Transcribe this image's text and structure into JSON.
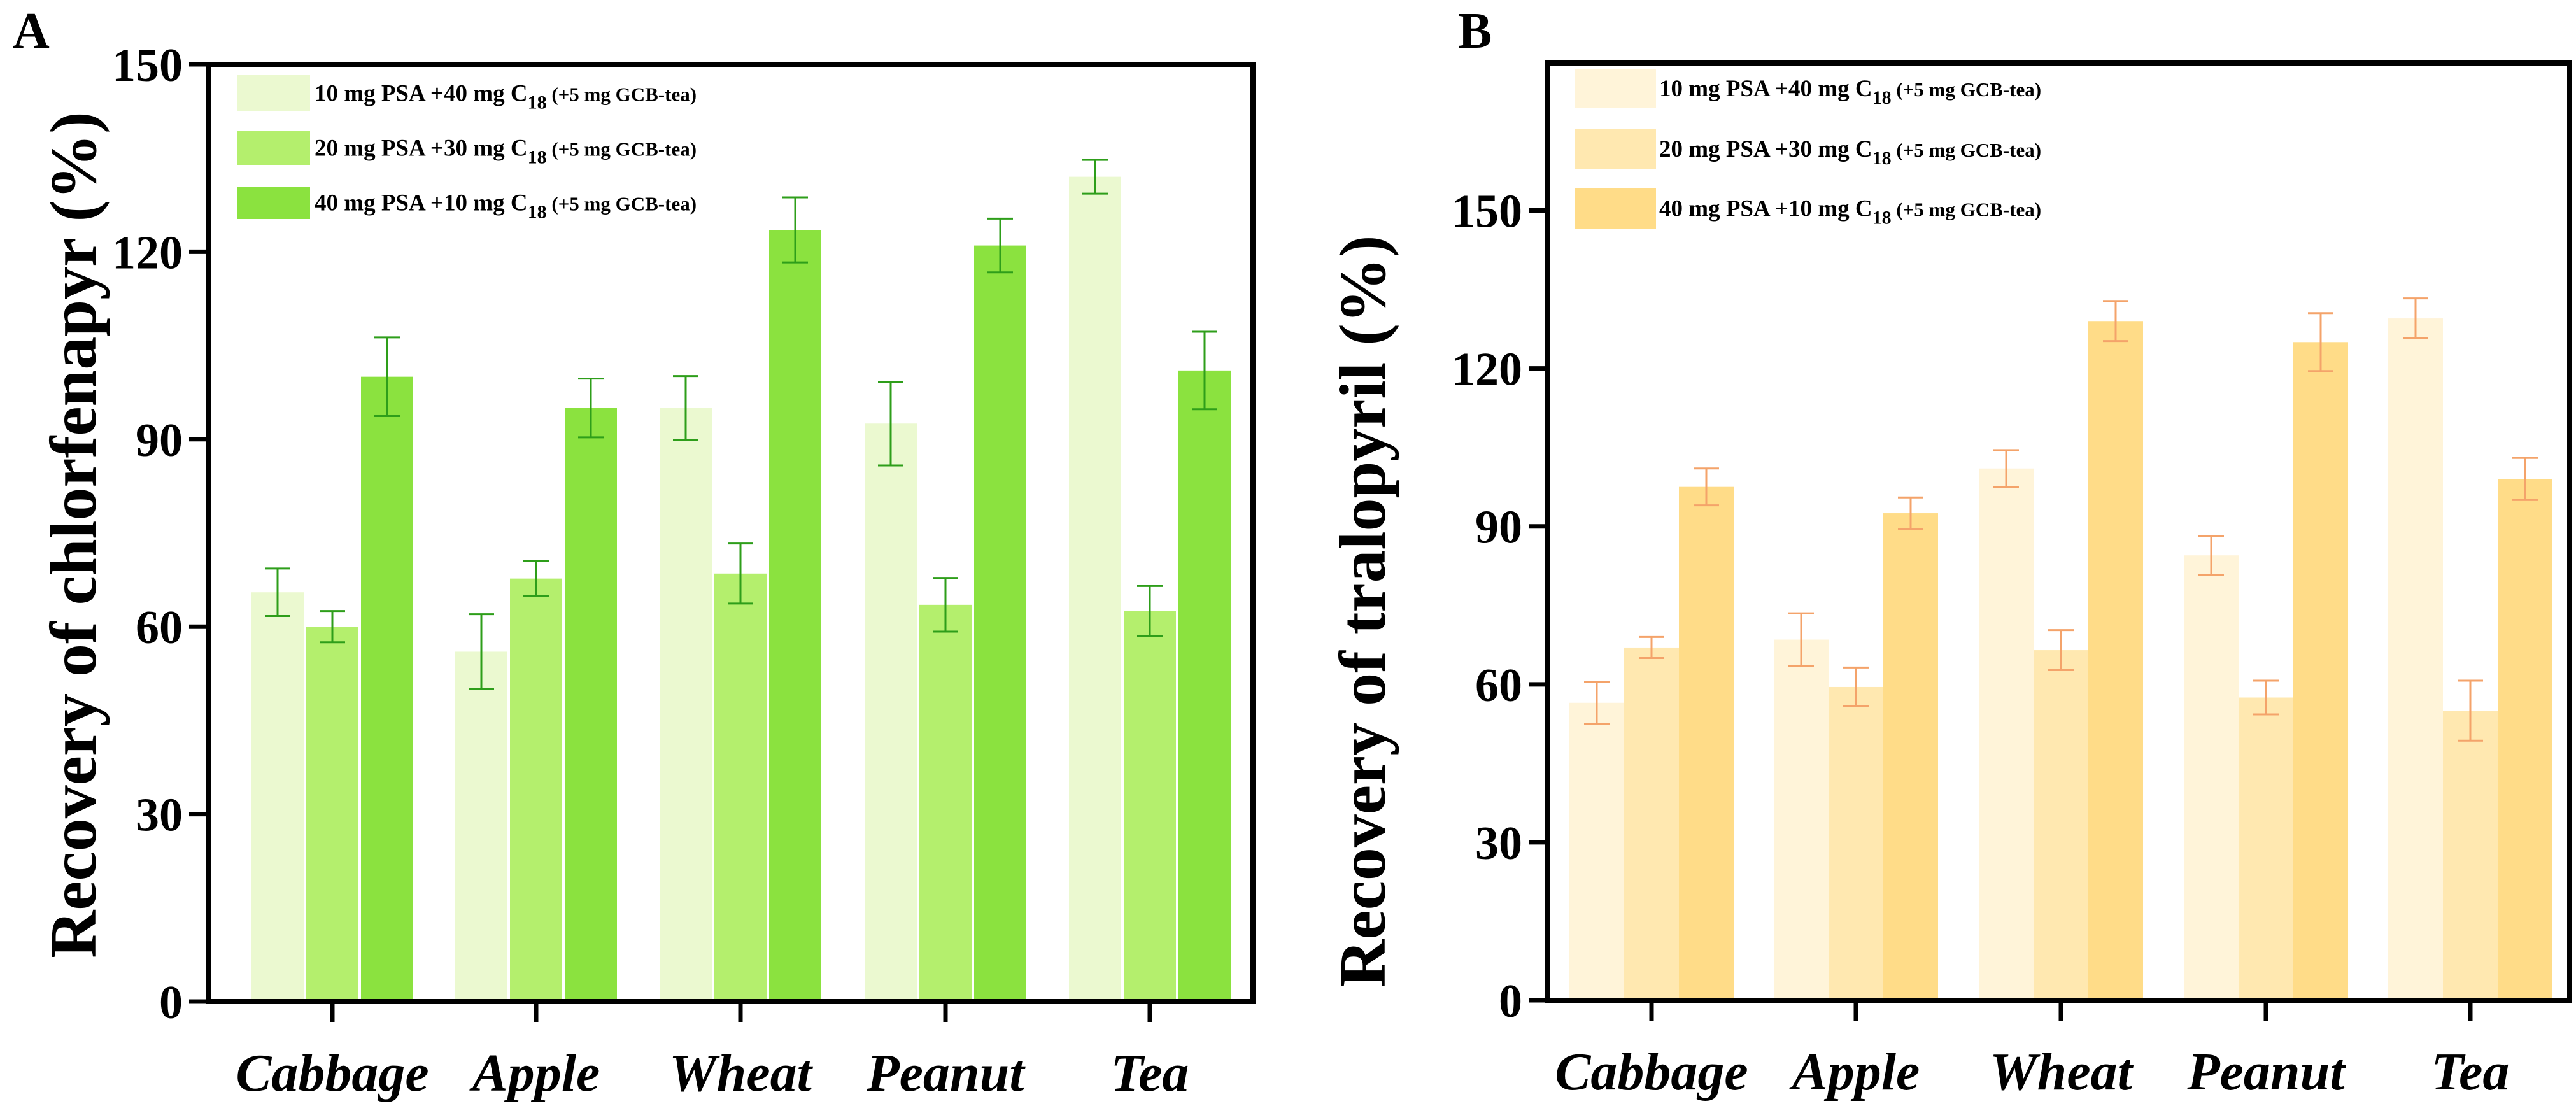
{
  "chart_data": [
    {
      "type": "bar",
      "panel_label": "A",
      "title": "",
      "xlabel": "",
      "ylabel": "Recovery of chlorfenapyr (%)",
      "ylim": [
        0,
        150
      ],
      "yticks": [
        0,
        30,
        60,
        90,
        120,
        150
      ],
      "grid": false,
      "legend_position": "top-left",
      "categories": [
        "Cabbage",
        "Apple",
        "Wheat",
        "Peanut",
        "Tea"
      ],
      "error_bar_color": "#2e9e1a",
      "series": [
        {
          "name": "10 mg PSA +40 mg C18 (+5 mg GCB-tea)",
          "label_parts": [
            "10 mg PSA +40 mg C",
            "18",
            " (+5 mg GCB-tea)"
          ],
          "color": "#ebf9d0",
          "values": [
            65.5,
            56,
            95,
            92.5,
            132
          ],
          "errors": [
            3.8,
            6,
            5.1,
            6.7,
            2.7
          ]
        },
        {
          "name": "20 mg PSA +30 mg C18 (+5 mg GCB-tea)",
          "label_parts": [
            "20 mg PSA +30 mg C",
            "18",
            " (+5 mg GCB-tea)"
          ],
          "color": "#b4ef6d",
          "values": [
            60,
            67.7,
            68.5,
            63.5,
            62.5
          ],
          "errors": [
            2.5,
            2.8,
            4.8,
            4.3,
            4
          ]
        },
        {
          "name": "40 mg PSA +10 mg C18 (+5 mg GCB-tea)",
          "label_parts": [
            "40 mg PSA +10 mg C",
            "18",
            " (+5 mg GCB-tea)"
          ],
          "color": "#8be23f",
          "values": [
            100,
            95,
            123.5,
            121,
            101
          ],
          "errors": [
            6.3,
            4.7,
            5.2,
            4.3,
            6.2
          ]
        }
      ]
    },
    {
      "type": "bar",
      "panel_label": "B",
      "title": "",
      "xlabel": "",
      "ylabel": "Recovery of tralopyril (%)",
      "ylim": [
        0,
        178
      ],
      "yticks": [
        0,
        30,
        60,
        90,
        120,
        150
      ],
      "grid": false,
      "legend_position": "top-left",
      "categories": [
        "Cabbage",
        "Apple",
        "Wheat",
        "Peanut",
        "Tea"
      ],
      "error_bar_color": "#f4a36a",
      "series": [
        {
          "name": "10 mg PSA +40 mg C18 (+5 mg GCB-tea)",
          "label_parts": [
            "10 mg PSA +40 mg C",
            "18",
            " (+5 mg GCB-tea)"
          ],
          "color": "#fff4d9",
          "values": [
            56.5,
            68.5,
            101,
            84.5,
            129.5
          ],
          "errors": [
            4,
            5,
            3.5,
            3.7,
            3.8
          ]
        },
        {
          "name": "20 mg PSA +30 mg C18 (+5 mg GCB-tea)",
          "label_parts": [
            "20 mg PSA +30 mg C",
            "18",
            " (+5 mg GCB-tea)"
          ],
          "color": "#ffe8b0",
          "values": [
            67,
            59.5,
            66.5,
            57.5,
            55
          ],
          "errors": [
            2,
            3.7,
            3.8,
            3.2,
            5.7
          ]
        },
        {
          "name": "40 mg PSA +10 mg C18 (+5 mg GCB-tea)",
          "label_parts": [
            "40 mg PSA +10 mg C",
            "18",
            " (+5 mg GCB-tea)"
          ],
          "color": "#ffdc88",
          "values": [
            97.5,
            92.5,
            129,
            125,
            99
          ],
          "errors": [
            3.5,
            3,
            3.8,
            5.5,
            4
          ]
        }
      ]
    }
  ]
}
